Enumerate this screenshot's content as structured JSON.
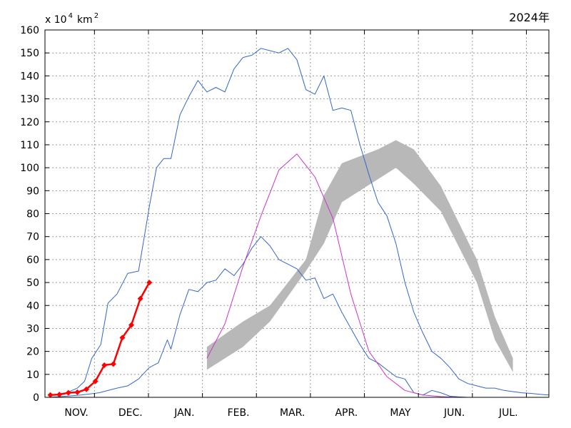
{
  "chart_data": {
    "type": "line",
    "year_label": "2024年",
    "unit": {
      "prefix": "x 10",
      "exp1": "4",
      "mid": "km",
      "exp2": "2"
    },
    "ylim": [
      0,
      160
    ],
    "y_ticks": [
      0,
      10,
      20,
      30,
      40,
      50,
      60,
      70,
      80,
      90,
      100,
      110,
      120,
      130,
      140,
      150,
      160
    ],
    "x_range": [
      0,
      28
    ],
    "months": [
      "NOV.",
      "DEC.",
      "JAN.",
      "FEB.",
      "MAR.",
      "APR.",
      "MAY",
      "JUN.",
      "JUL."
    ],
    "band": {
      "x": [
        9.0,
        11.0,
        12.5,
        14.5,
        15.5,
        16.5,
        18.5,
        19.5,
        20.5,
        22.0,
        24.0,
        25.0,
        26.0
      ],
      "upper": [
        22,
        33,
        40,
        60,
        88,
        102,
        108,
        112,
        108,
        92,
        60,
        35,
        17
      ],
      "lower": [
        12,
        22,
        33,
        55,
        67,
        85,
        95,
        100,
        93,
        81,
        50,
        25,
        11
      ]
    },
    "series": [
      {
        "role": "max",
        "color": "#3366cc",
        "x": [
          0.3,
          1.2,
          1.8,
          2.2,
          2.6,
          3.1,
          3.5,
          4.0,
          4.6,
          5.2,
          5.8,
          6.2,
          6.6,
          7.0,
          7.5,
          8.0,
          8.5,
          9.0,
          9.5,
          10.0,
          10.5,
          11.0,
          11.5,
          12.0,
          12.5,
          13.0,
          13.5,
          14.0,
          14.5,
          15.0,
          15.5,
          16.0,
          16.5,
          17.0,
          17.5,
          18.0,
          18.5,
          19.0,
          19.5,
          20.0,
          20.5,
          21.0,
          21.5,
          22.0,
          22.5,
          23.0,
          23.5,
          24.0,
          24.5,
          25.0,
          25.5,
          26.0,
          26.5,
          27.0,
          27.5,
          28.0
        ],
        "y": [
          1,
          2,
          4,
          7,
          17,
          23,
          41,
          45,
          54,
          55,
          83,
          100,
          104,
          104,
          123,
          131,
          138,
          133,
          135,
          133,
          143,
          148,
          149,
          152,
          151,
          150,
          152,
          147,
          134,
          132,
          140,
          125,
          126,
          125,
          110,
          97,
          85,
          79,
          67,
          50,
          37,
          28,
          20,
          17,
          13,
          8,
          6,
          5,
          4,
          4,
          3,
          2.5,
          2,
          1.7,
          1.3,
          1.0
        ]
      },
      {
        "role": "min",
        "color": "#3366cc",
        "x": [
          0.3,
          1.2,
          2.0,
          3.0,
          4.0,
          4.6,
          5.2,
          5.8,
          6.3,
          6.8,
          7.0,
          7.5,
          8.0,
          8.5,
          9.0,
          9.5,
          10.0,
          10.5,
          11.0,
          11.5,
          12.0,
          12.5,
          13.0,
          13.5,
          14.0,
          14.5,
          15.0,
          15.5,
          16.0,
          16.5,
          17.0,
          17.5,
          18.0,
          18.5,
          19.0,
          19.5,
          20.0,
          20.5,
          21.0,
          21.5,
          22.0,
          22.5,
          23.0,
          23.5,
          24.0,
          24.5,
          25.0,
          25.5,
          26.0,
          26.5,
          27.0,
          27.5,
          28.0
        ],
        "y": [
          0,
          0.5,
          1,
          2,
          4,
          5,
          8,
          13,
          15,
          25,
          21,
          36,
          47,
          46,
          50,
          51,
          56,
          53,
          58,
          65,
          70,
          66,
          60,
          58,
          56,
          51,
          52,
          43,
          45,
          37,
          30,
          23,
          17,
          15,
          12,
          9,
          8,
          2,
          1,
          3,
          2,
          0.5,
          0.2,
          0,
          0,
          0,
          0,
          0,
          0,
          0,
          0,
          0,
          0
        ]
      },
      {
        "role": "mean",
        "color": "#cc33cc",
        "x": [
          9.0,
          10.0,
          11.0,
          12.0,
          13.0,
          14.0,
          15.0,
          16.0,
          17.0,
          18.0,
          19.0,
          20.0,
          21.0,
          22.0,
          23.0,
          24.0,
          25.0,
          26.0,
          27.0,
          28.0
        ],
        "y": [
          17,
          32,
          57,
          79,
          99,
          106,
          96,
          78,
          45,
          20,
          9,
          3,
          1,
          0.3,
          0,
          0,
          0,
          0,
          0,
          0
        ]
      },
      {
        "role": "current",
        "color": "#ff0000",
        "x": [
          0.3,
          0.8,
          1.3,
          1.8,
          2.3,
          2.8,
          3.3,
          3.8,
          4.3,
          4.8,
          5.3,
          5.8
        ],
        "y": [
          1,
          1.2,
          2,
          2.2,
          3.5,
          7,
          14,
          14.5,
          26,
          31.5,
          43,
          50
        ]
      }
    ]
  }
}
